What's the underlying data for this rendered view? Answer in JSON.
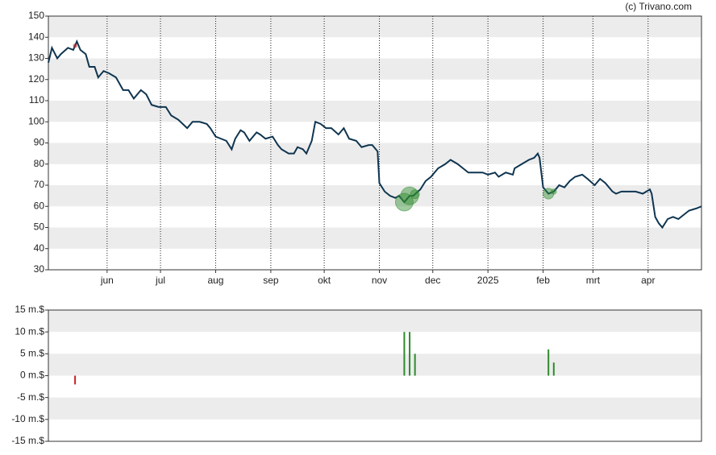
{
  "credit": "(c) Trivano.com",
  "chart_data": [
    {
      "type": "line",
      "color": "#0f3550",
      "x": [
        0,
        2,
        5,
        7,
        11,
        14,
        16,
        18,
        21,
        23,
        26,
        28,
        31,
        34,
        38,
        42,
        45,
        48,
        50,
        52,
        55,
        58,
        62,
        66,
        69,
        73,
        78,
        81,
        85,
        89,
        91,
        94,
        97,
        100,
        103,
        105,
        108,
        110,
        113,
        117,
        119,
        122,
        126,
        129,
        131,
        135,
        138,
        140,
        143,
        145,
        148,
        150,
        153,
        156,
        159,
        163,
        166,
        169,
        173,
        176,
        180,
        182,
        185,
        186,
        189,
        192,
        195,
        197,
        200,
        203,
        205,
        209,
        212,
        215,
        219,
        223,
        226,
        230,
        233,
        236,
        240,
        244,
        247,
        251,
        253,
        257,
        261,
        262,
        266,
        270,
        273,
        275,
        276,
        278,
        281,
        284,
        287,
        290,
        293,
        296,
        300,
        303,
        307,
        310,
        313,
        317,
        319,
        322,
        326,
        330,
        334,
        338,
        339,
        341,
        343,
        345,
        348,
        351,
        354,
        357,
        360,
        364,
        367
      ],
      "values": [
        128,
        135,
        130,
        132,
        135,
        134,
        138,
        134,
        132,
        126,
        126,
        121,
        124,
        123,
        121,
        115,
        115,
        111,
        113,
        115,
        113,
        108,
        107,
        107,
        103,
        101,
        97,
        100,
        100,
        99,
        97,
        93,
        92,
        91,
        87,
        92,
        96,
        95,
        91,
        95,
        94,
        92,
        93,
        89,
        87,
        85,
        85,
        88,
        87,
        85,
        91,
        100,
        99,
        97,
        97,
        94,
        97,
        92,
        91,
        88,
        89,
        89,
        86,
        71,
        67,
        65,
        64,
        65,
        62,
        65,
        65,
        68,
        72,
        74,
        78,
        80,
        82,
        80,
        78,
        76,
        76,
        76,
        75,
        76,
        74,
        76,
        75,
        78,
        80,
        82,
        83,
        85,
        83,
        69,
        66,
        67,
        70,
        69,
        72,
        74,
        75,
        73,
        70,
        73,
        71,
        67,
        66,
        67,
        67,
        67,
        66,
        68,
        66,
        55,
        52,
        50,
        54,
        55,
        54,
        56,
        58,
        59,
        60
      ],
      "xlim": [
        0,
        367
      ],
      "xticks": [
        {
          "value": 33,
          "label": "jun"
        },
        {
          "value": 63,
          "label": "jul"
        },
        {
          "value": 94,
          "label": "aug"
        },
        {
          "value": 125,
          "label": "sep"
        },
        {
          "value": 155,
          "label": "okt"
        },
        {
          "value": 186,
          "label": "nov"
        },
        {
          "value": 216,
          "label": "dec"
        },
        {
          "value": 247,
          "label": "2025"
        },
        {
          "value": 278,
          "label": "feb"
        },
        {
          "value": 306,
          "label": "mrt"
        },
        {
          "value": 337,
          "label": "apr"
        }
      ],
      "ylim": [
        30,
        150
      ],
      "yticks": [
        30,
        40,
        50,
        60,
        70,
        80,
        90,
        100,
        110,
        120,
        130,
        140,
        150
      ]
    },
    {
      "type": "bar",
      "x": [
        15,
        200,
        203,
        206,
        281,
        284
      ],
      "values": [
        -2,
        10,
        10,
        5,
        6,
        3
      ],
      "colors": [
        "#cc2222",
        "#2e8b2e",
        "#2e8b2e",
        "#2e8b2e",
        "#2e8b2e",
        "#2e8b2e"
      ],
      "xlim": [
        0,
        367
      ],
      "ylim": [
        -15,
        15
      ],
      "yticks": [
        {
          "value": -15,
          "label": "-15 m.$"
        },
        {
          "value": -10,
          "label": "-10 m.$"
        },
        {
          "value": -5,
          "label": "-5 m.$"
        },
        {
          "value": 0,
          "label": "0 m.$"
        },
        {
          "value": 5,
          "label": "5 m.$"
        },
        {
          "value": 10,
          "label": "10 m.$"
        },
        {
          "value": 15,
          "label": "15 m.$"
        }
      ]
    }
  ]
}
